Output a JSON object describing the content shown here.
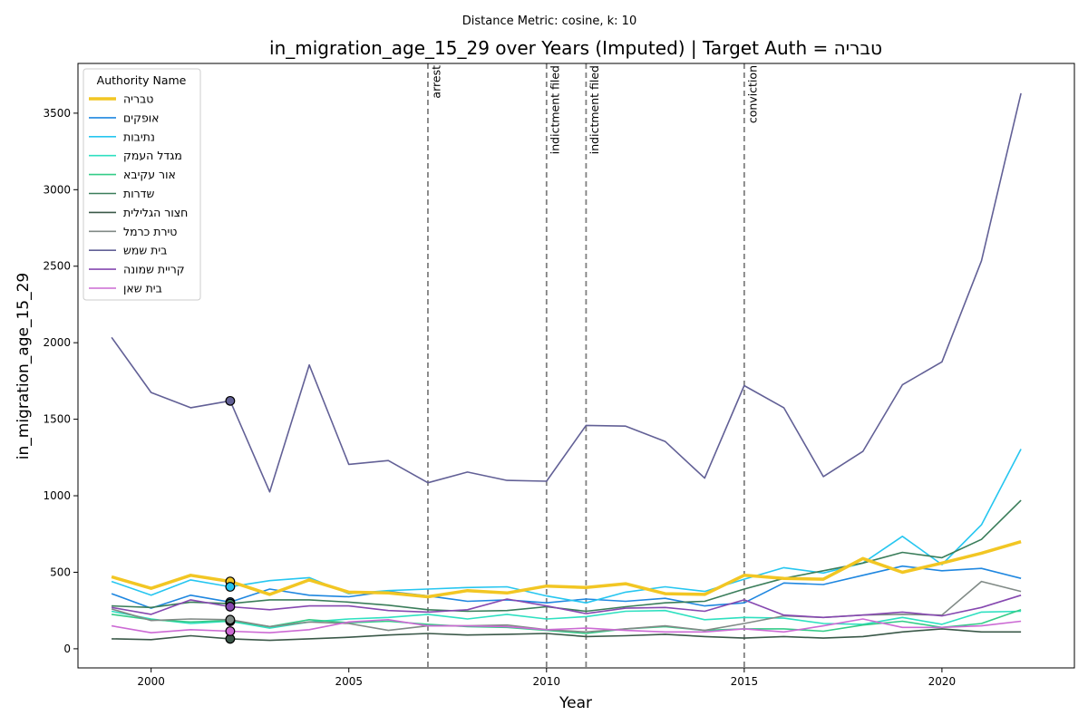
{
  "chart_data": {
    "type": "line",
    "suptitle": "Distance Metric: cosine, k: 10",
    "title": "in_migration_age_15_29 over Years (Imputed) | Target Auth = טבריה",
    "xlabel": "Year",
    "ylabel": "in_migration_age_15_29",
    "xlim": [
      1998.15,
      2023.35
    ],
    "ylim": [
      -125,
      3825
    ],
    "xticks": [
      2000,
      2005,
      2010,
      2015,
      2020
    ],
    "yticks": [
      0,
      500,
      1000,
      1500,
      2000,
      2500,
      3000,
      3500
    ],
    "grid": false,
    "legend": {
      "title": "Authority Name",
      "placement": "top-left"
    },
    "x": [
      1999,
      2000,
      2001,
      2002,
      2003,
      2004,
      2005,
      2006,
      2007,
      2008,
      2009,
      2010,
      2011,
      2012,
      2013,
      2014,
      2015,
      2016,
      2017,
      2018,
      2019,
      2020,
      2021,
      2022
    ],
    "series": [
      {
        "name": "טבריה",
        "color": "#f2c623",
        "width": 3.5,
        "values": [
          470,
          395,
          480,
          440,
          355,
          450,
          370,
          365,
          340,
          380,
          365,
          410,
          400,
          425,
          360,
          355,
          480,
          460,
          455,
          590,
          500,
          560,
          625,
          700
        ]
      },
      {
        "name": "אופקים",
        "color": "#1f87e0",
        "width": 1.6,
        "values": [
          360,
          265,
          350,
          305,
          390,
          350,
          340,
          375,
          345,
          310,
          320,
          300,
          325,
          310,
          330,
          280,
          300,
          430,
          420,
          480,
          540,
          510,
          525,
          460
        ]
      },
      {
        "name": "נתיבות",
        "color": "#26c6f0",
        "width": 1.6,
        "values": [
          440,
          350,
          450,
          405,
          445,
          465,
          360,
          380,
          390,
          400,
          405,
          345,
          300,
          370,
          405,
          375,
          455,
          530,
          495,
          560,
          735,
          550,
          810,
          1305
        ]
      },
      {
        "name": "מגדל העמק",
        "color": "#2ee0c0",
        "width": 1.6,
        "values": [
          245,
          195,
          165,
          180,
          135,
          175,
          195,
          205,
          225,
          195,
          225,
          195,
          210,
          245,
          250,
          190,
          205,
          200,
          165,
          160,
          205,
          160,
          240,
          245
        ]
      },
      {
        "name": "אור עקיבא",
        "color": "#33cc88",
        "width": 1.6,
        "values": [
          225,
          190,
          175,
          185,
          145,
          190,
          170,
          180,
          160,
          145,
          140,
          120,
          100,
          130,
          145,
          120,
          130,
          130,
          115,
          155,
          180,
          140,
          165,
          255
        ]
      },
      {
        "name": "שדרות",
        "color": "#3a7d5a",
        "width": 1.6,
        "values": [
          280,
          270,
          305,
          295,
          320,
          320,
          305,
          285,
          255,
          245,
          250,
          275,
          245,
          275,
          300,
          310,
          390,
          460,
          510,
          560,
          630,
          595,
          715,
          970
        ]
      },
      {
        "name": "חצור הגלילית",
        "color": "#3a5848",
        "width": 1.6,
        "values": [
          65,
          60,
          85,
          65,
          55,
          65,
          75,
          90,
          100,
          90,
          95,
          100,
          80,
          85,
          95,
          80,
          70,
          80,
          70,
          80,
          110,
          130,
          110,
          110
        ]
      },
      {
        "name": "טירת כרמל",
        "color": "#808a86",
        "width": 1.6,
        "values": [
          260,
          185,
          195,
          190,
          145,
          175,
          165,
          120,
          150,
          150,
          155,
          125,
          110,
          130,
          150,
          120,
          165,
          215,
          205,
          220,
          225,
          220,
          440,
          375
        ]
      },
      {
        "name": "בית שמש",
        "color": "#626096",
        "width": 1.6,
        "values": [
          2035,
          1675,
          1575,
          1620,
          1025,
          1855,
          1205,
          1230,
          1085,
          1155,
          1100,
          1095,
          1460,
          1455,
          1355,
          1115,
          1720,
          1575,
          1125,
          1290,
          1725,
          1875,
          2535,
          3630
        ]
      },
      {
        "name": "קריית שמונה",
        "color": "#8648b0",
        "width": 1.6,
        "values": [
          270,
          225,
          320,
          275,
          255,
          280,
          280,
          250,
          240,
          255,
          325,
          280,
          230,
          265,
          270,
          245,
          320,
          220,
          205,
          220,
          240,
          215,
          270,
          350
        ]
      },
      {
        "name": "בית שאן",
        "color": "#cc6ad4",
        "width": 1.6,
        "values": [
          150,
          105,
          125,
          115,
          105,
          125,
          175,
          190,
          150,
          150,
          145,
          125,
          135,
          120,
          110,
          110,
          130,
          110,
          150,
          195,
          140,
          140,
          150,
          180
        ]
      }
    ],
    "highlight_year": 2002,
    "events": [
      {
        "x": 2007,
        "label": "arrest"
      },
      {
        "x": 2010,
        "label": "indictment filed"
      },
      {
        "x": 2011,
        "label": "indictment filed"
      },
      {
        "x": 2015,
        "label": "conviction"
      }
    ]
  }
}
